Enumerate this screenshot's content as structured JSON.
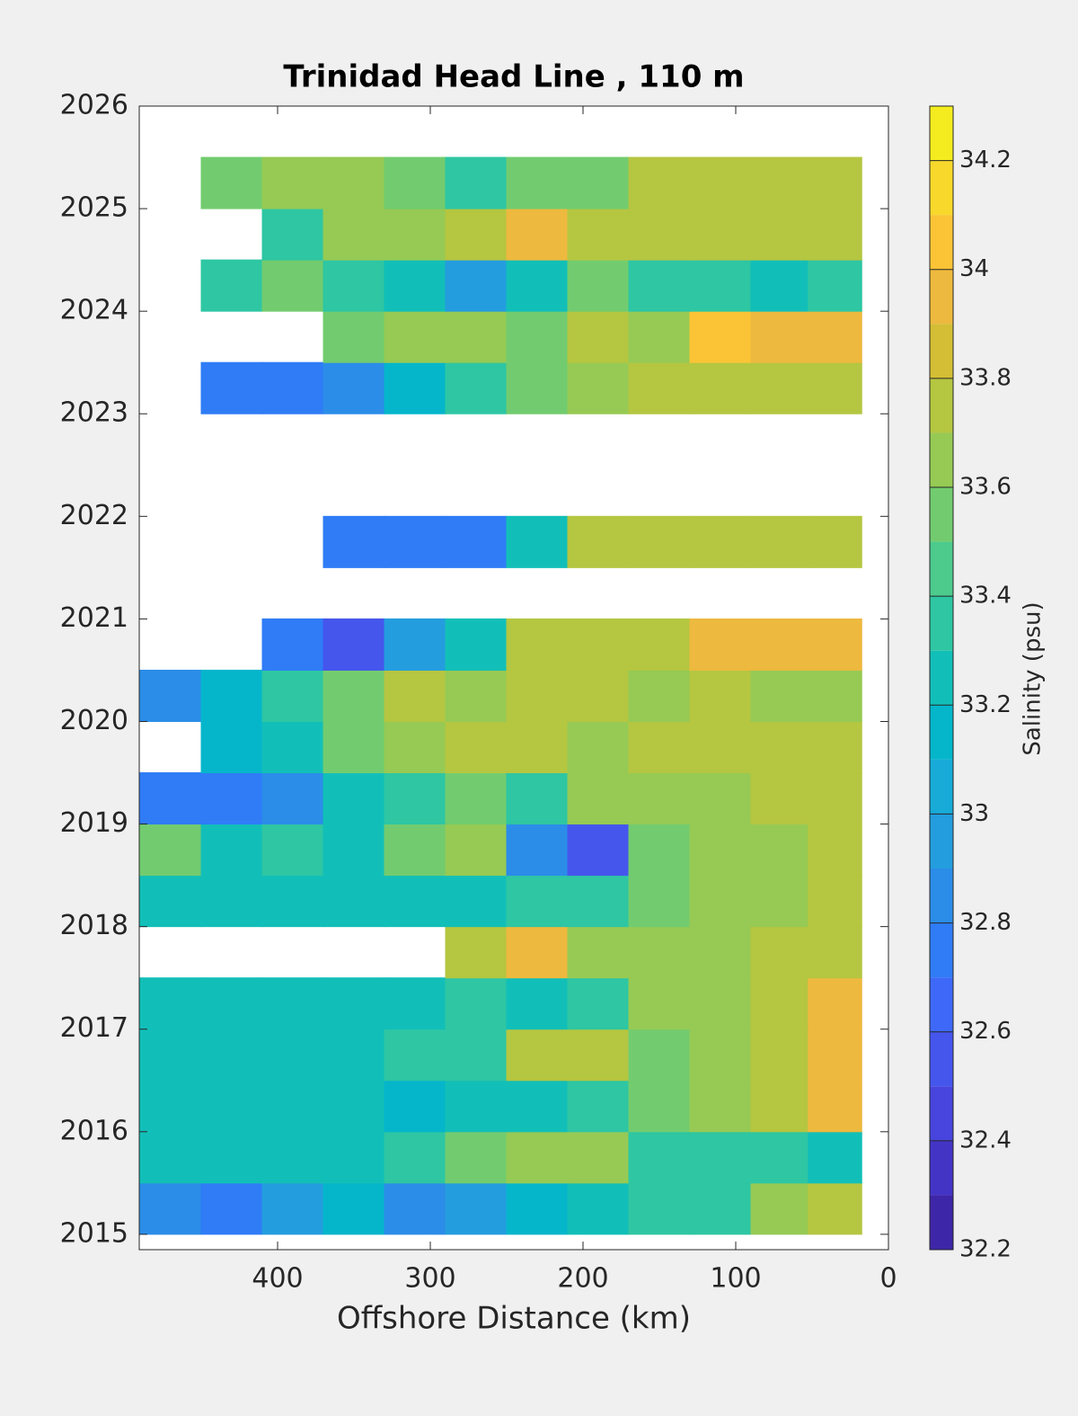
{
  "chart_data": {
    "type": "contour",
    "title": "Trinidad Head Line , 110 m",
    "x_label": "Offshore Distance (km)",
    "colorbar_label": "Salinity (psu)",
    "xlim": [
      490.6,
      0
    ],
    "xticks": [
      400,
      300,
      200,
      100,
      0
    ],
    "ylim": [
      2014.85,
      2026
    ],
    "yticks": [
      2015,
      2016,
      2017,
      2018,
      2019,
      2020,
      2021,
      2022,
      2023,
      2024,
      2025,
      2026
    ],
    "clim": [
      32.2,
      34.3
    ],
    "cticks": [
      32.2,
      32.4,
      32.6,
      32.8,
      33,
      33.2,
      33.4,
      33.6,
      33.8,
      34,
      34.2
    ],
    "colormap": [
      "#3e26a8",
      "#4434c6",
      "#4745dd",
      "#4556ed",
      "#3e69f8",
      "#2f7cf6",
      "#2b8de8",
      "#249dde",
      "#18abd8",
      "#05b6cb",
      "#12bfb8",
      "#2ec6a3",
      "#4ccb8d",
      "#72cc6f",
      "#96ca54",
      "#b5c641",
      "#d3be35",
      "#edb93e",
      "#fbc436",
      "#f8d82b",
      "#f4ec1f"
    ],
    "x": [
      470,
      430,
      390,
      350,
      310,
      270,
      230,
      190,
      150,
      110,
      70,
      35
    ],
    "y": [
      2015.25,
      2015.75,
      2016.25,
      2016.75,
      2017.25,
      2017.75,
      2018.25,
      2018.75,
      2019.25,
      2019.75,
      2020.25,
      2020.75,
      2021.25,
      2021.75,
      2022.25,
      2022.75,
      2023.25,
      2023.75,
      2024.25,
      2024.75,
      2025.25
    ],
    "z": [
      [
        32.9,
        32.8,
        33.0,
        33.1,
        32.9,
        33.0,
        33.1,
        33.2,
        33.4,
        33.4,
        33.6,
        33.7
      ],
      [
        33.3,
        33.3,
        33.3,
        33.3,
        33.4,
        33.5,
        33.6,
        33.6,
        33.4,
        33.4,
        33.4,
        33.3
      ],
      [
        33.2,
        33.3,
        33.2,
        33.2,
        33.1,
        33.2,
        33.3,
        33.4,
        33.5,
        33.6,
        33.7,
        33.9
      ],
      [
        33.2,
        33.3,
        33.3,
        33.3,
        33.4,
        33.4,
        33.7,
        33.8,
        33.5,
        33.6,
        33.8,
        33.9
      ],
      [
        33.3,
        33.3,
        33.3,
        33.3,
        33.3,
        33.4,
        33.3,
        33.4,
        33.6,
        33.6,
        33.7,
        33.9
      ],
      [
        null,
        null,
        null,
        null,
        null,
        33.7,
        33.9,
        33.6,
        33.6,
        33.6,
        33.7,
        33.7
      ],
      [
        33.3,
        33.3,
        33.3,
        33.3,
        33.3,
        33.3,
        33.4,
        33.4,
        33.5,
        33.6,
        33.6,
        33.7
      ],
      [
        33.5,
        33.2,
        33.4,
        33.2,
        33.5,
        33.6,
        32.9,
        32.6,
        33.5,
        33.6,
        33.6,
        33.8
      ],
      [
        32.8,
        32.7,
        32.9,
        33.2,
        33.4,
        33.5,
        33.4,
        33.6,
        33.6,
        33.6,
        33.7,
        33.8
      ],
      [
        null,
        33.1,
        33.2,
        33.5,
        33.6,
        33.8,
        33.8,
        33.6,
        33.7,
        33.8,
        33.7,
        33.8
      ],
      [
        32.9,
        33.1,
        33.4,
        33.5,
        33.7,
        33.6,
        33.7,
        33.7,
        33.6,
        33.7,
        33.6,
        33.6
      ],
      [
        null,
        null,
        32.7,
        32.6,
        33.0,
        33.3,
        33.7,
        33.8,
        33.8,
        33.9,
        33.9,
        33.9
      ],
      [
        null,
        null,
        null,
        null,
        null,
        null,
        null,
        null,
        null,
        null,
        null,
        null
      ],
      [
        null,
        null,
        null,
        32.7,
        32.7,
        32.7,
        33.3,
        33.7,
        33.7,
        33.7,
        33.7,
        33.7
      ],
      [
        null,
        null,
        null,
        null,
        null,
        null,
        null,
        null,
        null,
        null,
        null,
        null
      ],
      [
        null,
        null,
        null,
        null,
        null,
        null,
        null,
        null,
        null,
        null,
        null,
        null
      ],
      [
        null,
        32.8,
        32.8,
        32.9,
        33.1,
        33.4,
        33.5,
        33.6,
        33.7,
        33.7,
        33.8,
        33.8
      ],
      [
        null,
        null,
        null,
        33.5,
        33.6,
        33.6,
        33.5,
        33.7,
        33.6,
        34.0,
        33.9,
        33.9
      ],
      [
        null,
        33.4,
        33.5,
        33.4,
        33.3,
        33.0,
        33.2,
        33.5,
        33.4,
        33.4,
        33.3,
        33.4
      ],
      [
        null,
        null,
        33.4,
        33.6,
        33.6,
        33.7,
        33.9,
        33.7,
        33.7,
        33.8,
        33.8,
        33.8
      ],
      [
        null,
        33.5,
        33.6,
        33.6,
        33.5,
        33.4,
        33.5,
        33.5,
        33.7,
        33.8,
        33.7,
        33.8
      ]
    ]
  }
}
